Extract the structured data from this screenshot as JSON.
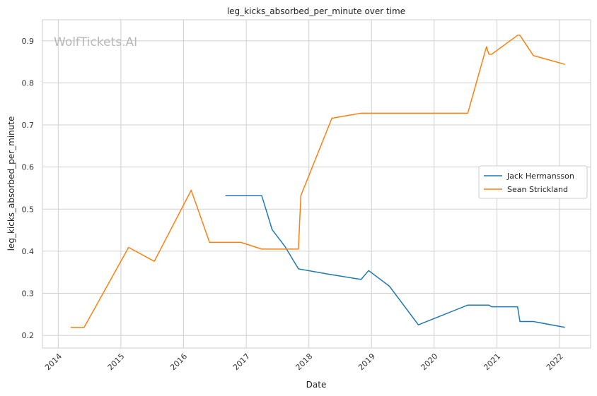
{
  "chart_data": {
    "type": "line",
    "title": "leg_kicks_absorbed_per_minute over time",
    "xlabel": "Date",
    "ylabel": "leg_kicks_absorbed_per_minute",
    "watermark": "WolfTickets.AI",
    "xlim": [
      "2013-10-01",
      "2022-07-01"
    ],
    "ylim": [
      0.17,
      0.95
    ],
    "x_ticks": [
      "2014",
      "2015",
      "2016",
      "2017",
      "2018",
      "2019",
      "2020",
      "2021",
      "2022"
    ],
    "y_ticks": [
      "0.2",
      "0.3",
      "0.4",
      "0.5",
      "0.6",
      "0.7",
      "0.8",
      "0.9"
    ],
    "grid": true,
    "legend_position": "center-right",
    "series": [
      {
        "name": "Jack Hermansson",
        "color": "#1f77b4",
        "points": [
          [
            "2016-09-01",
            0.532
          ],
          [
            "2017-04-01",
            0.532
          ],
          [
            "2017-06-01",
            0.451
          ],
          [
            "2017-08-15",
            0.411
          ],
          [
            "2017-11-01",
            0.358
          ],
          [
            "2018-05-01",
            0.345
          ],
          [
            "2018-11-01",
            0.333
          ],
          [
            "2018-12-15",
            0.354
          ],
          [
            "2019-04-15",
            0.317
          ],
          [
            "2019-10-01",
            0.225
          ],
          [
            "2020-07-15",
            0.272
          ],
          [
            "2020-11-15",
            0.272
          ],
          [
            "2020-12-01",
            0.268
          ],
          [
            "2021-05-01",
            0.268
          ],
          [
            "2021-05-15",
            0.233
          ],
          [
            "2021-08-01",
            0.233
          ],
          [
            "2022-02-01",
            0.219
          ]
        ]
      },
      {
        "name": "Sean Strickland",
        "color": "#ff7f0e",
        "points": [
          [
            "2014-03-15",
            0.219
          ],
          [
            "2014-06-01",
            0.219
          ],
          [
            "2015-02-15",
            0.409
          ],
          [
            "2015-07-15",
            0.376
          ],
          [
            "2016-02-15",
            0.545
          ],
          [
            "2016-06-01",
            0.421
          ],
          [
            "2016-12-01",
            0.421
          ],
          [
            "2017-04-01",
            0.405
          ],
          [
            "2017-11-01",
            0.405
          ],
          [
            "2017-11-15",
            0.532
          ],
          [
            "2018-05-15",
            0.716
          ],
          [
            "2018-11-01",
            0.728
          ],
          [
            "2020-07-15",
            0.728
          ],
          [
            "2020-11-01",
            0.886
          ],
          [
            "2020-11-15",
            0.868
          ],
          [
            "2020-12-01",
            0.868
          ],
          [
            "2021-05-01",
            0.913
          ],
          [
            "2021-05-15",
            0.913
          ],
          [
            "2021-08-01",
            0.865
          ],
          [
            "2022-02-01",
            0.844
          ]
        ]
      }
    ]
  }
}
